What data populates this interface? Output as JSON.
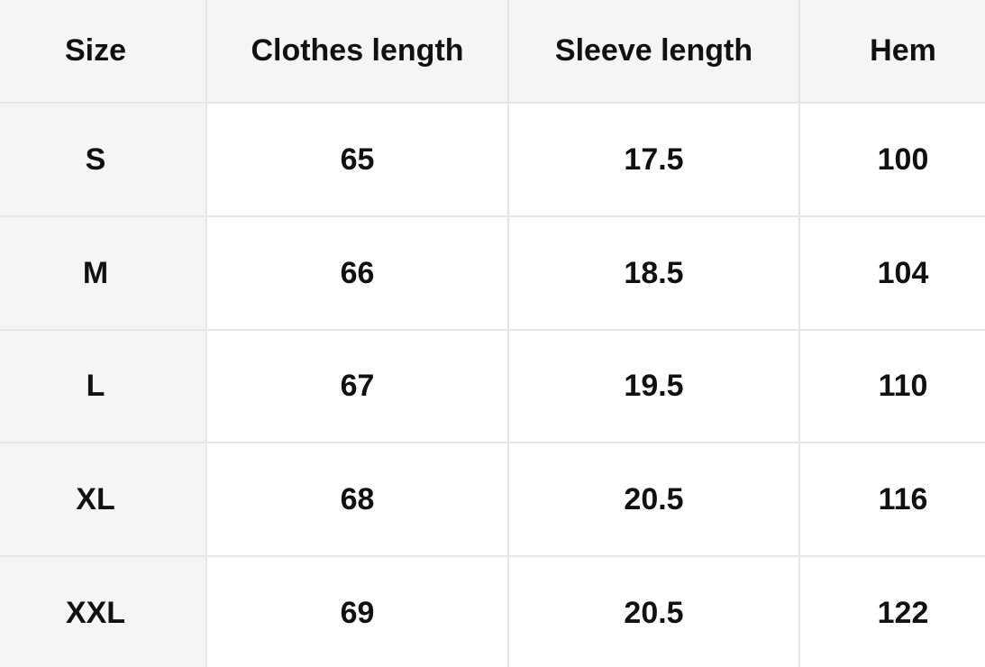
{
  "table": {
    "header": [
      "Size",
      "Clothes length",
      "Sleeve length",
      "Hem"
    ],
    "rows": [
      [
        "S",
        "65",
        "17.5",
        "100"
      ],
      [
        "M",
        "66",
        "18.5",
        "104"
      ],
      [
        "L",
        "67",
        "19.5",
        "110"
      ],
      [
        "XL",
        "68",
        "20.5",
        "116"
      ],
      [
        "XXL",
        "69",
        "20.5",
        "122"
      ]
    ]
  }
}
